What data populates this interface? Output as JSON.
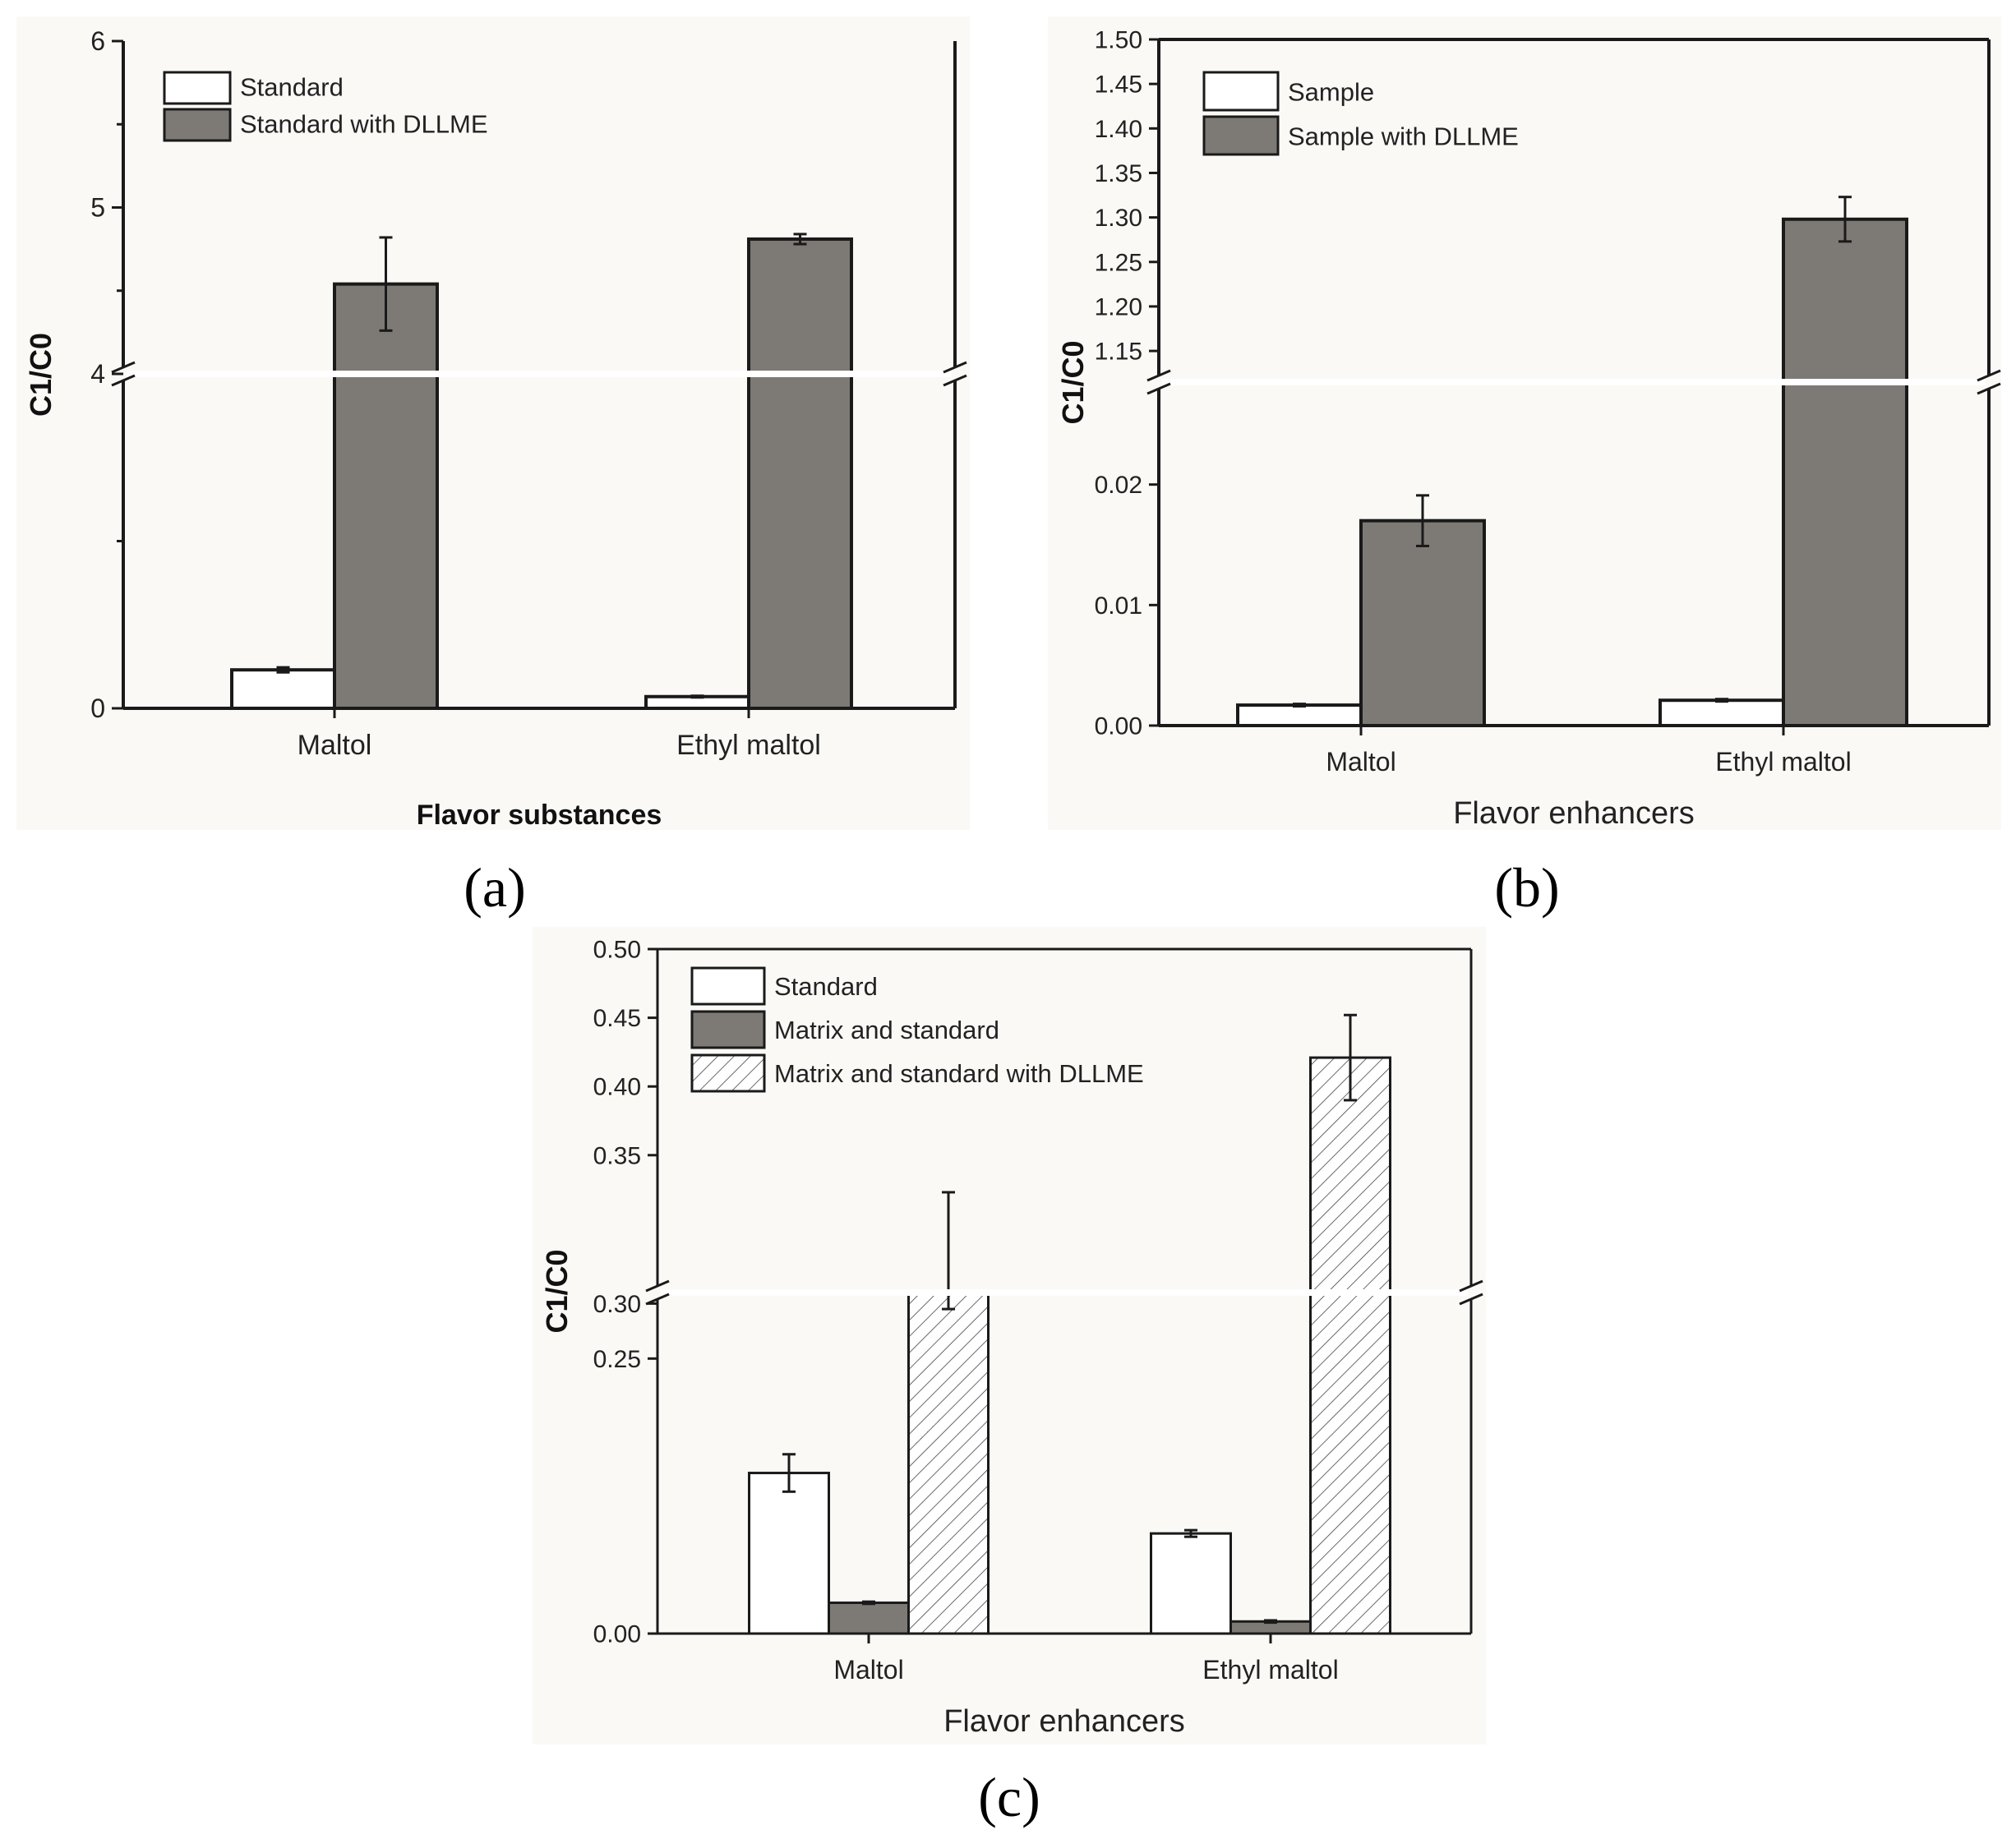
{
  "figure": {
    "panel_labels": [
      "(a)",
      "(b)",
      "(c)"
    ]
  },
  "chart_data": [
    {
      "panel": "(a)",
      "type": "bar",
      "title": "",
      "xlabel": "Flavor substances",
      "ylabel": "C1/C0",
      "categories": [
        "Maltol",
        "Ethyl maltol"
      ],
      "series": [
        {
          "name": "Standard",
          "values": [
            0.46,
            0.14
          ],
          "errors": [
            0.03,
            0.01
          ],
          "fill": "#ffffff",
          "pattern": "none"
        },
        {
          "name": "Standard with DLLME",
          "values": [
            4.54,
            4.81
          ],
          "errors": [
            0.28,
            0.03
          ],
          "fill": "#7d7a76",
          "pattern": "none"
        }
      ],
      "axis_break": {
        "lower_range": [
          0,
          4
        ],
        "upper_range": [
          4,
          6
        ]
      },
      "ylim": [
        0,
        6
      ],
      "lower_ticks": [
        {
          "v": 0,
          "label": "0"
        }
      ],
      "lower_minor": [
        2
      ],
      "upper_ticks": [
        {
          "v": 4,
          "label": "4"
        },
        {
          "v": 5,
          "label": "5"
        },
        {
          "v": 6,
          "label": "6"
        }
      ],
      "upper_minor": [
        4.5,
        5.5
      ],
      "legend_position": "top-left",
      "grid": false
    },
    {
      "panel": "(b)",
      "type": "bar",
      "title": "",
      "xlabel": "Flavor enhancers",
      "ylabel": "C1/C0",
      "categories": [
        "Maltol",
        "Ethyl maltol"
      ],
      "series": [
        {
          "name": "Sample",
          "values": [
            0.0017,
            0.0021
          ],
          "errors": [
            0.0001,
            0.0001
          ],
          "fill": "#ffffff",
          "pattern": "none"
        },
        {
          "name": "Sample with DLLME",
          "values": [
            0.017,
            1.298
          ],
          "errors": [
            0.0021,
            0.025
          ],
          "fill": "#7d7a76",
          "pattern": "none"
        }
      ],
      "axis_break": {
        "lower_range": [
          0,
          0.0285
        ],
        "upper_range": [
          1.115,
          1.5
        ]
      },
      "ylim": [
        0,
        1.5
      ],
      "lower_ticks": [
        {
          "v": 0,
          "label": "0.00"
        },
        {
          "v": 0.01,
          "label": "0.01"
        },
        {
          "v": 0.02,
          "label": "0.02"
        }
      ],
      "lower_minor": [],
      "upper_ticks": [
        {
          "v": 1.15,
          "label": "1.15"
        },
        {
          "v": 1.2,
          "label": "1.20"
        },
        {
          "v": 1.25,
          "label": "1.25"
        },
        {
          "v": 1.3,
          "label": "1.30"
        },
        {
          "v": 1.35,
          "label": "1.35"
        },
        {
          "v": 1.4,
          "label": "1.40"
        },
        {
          "v": 1.45,
          "label": "1.45"
        },
        {
          "v": 1.5,
          "label": "1.50"
        }
      ],
      "upper_minor": [],
      "legend_position": "top-left",
      "grid": false
    },
    {
      "panel": "(c)",
      "type": "bar",
      "title": "",
      "xlabel": "Flavor enhancers",
      "ylabel": "C1/C0",
      "categories": [
        "Maltol",
        "Ethyl maltol"
      ],
      "series": [
        {
          "name": "Standard",
          "values": [
            0.146,
            0.091
          ],
          "errors": [
            0.017,
            0.003
          ],
          "fill": "#ffffff",
          "pattern": "none"
        },
        {
          "name": "Matrix and standard",
          "values": [
            0.028,
            0.011
          ],
          "errors": [
            0.001,
            0.001
          ],
          "fill": "#7d7a76",
          "pattern": "none"
        },
        {
          "name": "Matrix and standard with DLLME",
          "values": [
            0.309,
            0.421
          ],
          "errors": [
            0.014,
            0.031
          ],
          "fill": "#ffffff",
          "pattern": "hatch"
        }
      ],
      "axis_break": {
        "lower_range": [
          0,
          0.31
        ],
        "upper_range": [
          0.25,
          0.5
        ]
      },
      "ylim": [
        0,
        0.5
      ],
      "lower_ticks": [
        {
          "v": 0,
          "label": "0.00"
        }
      ],
      "lower_minor": [],
      "upper_ticks": [
        {
          "v": 0.25,
          "label": "0.25"
        },
        {
          "v": 0.3,
          "label": "0.30"
        },
        {
          "v": 0.35,
          "label": "0.35"
        },
        {
          "v": 0.4,
          "label": "0.40"
        },
        {
          "v": 0.45,
          "label": "0.45"
        },
        {
          "v": 0.5,
          "label": "0.50"
        }
      ],
      "upper_minor": [],
      "legend_position": "top-left",
      "grid": false
    }
  ]
}
